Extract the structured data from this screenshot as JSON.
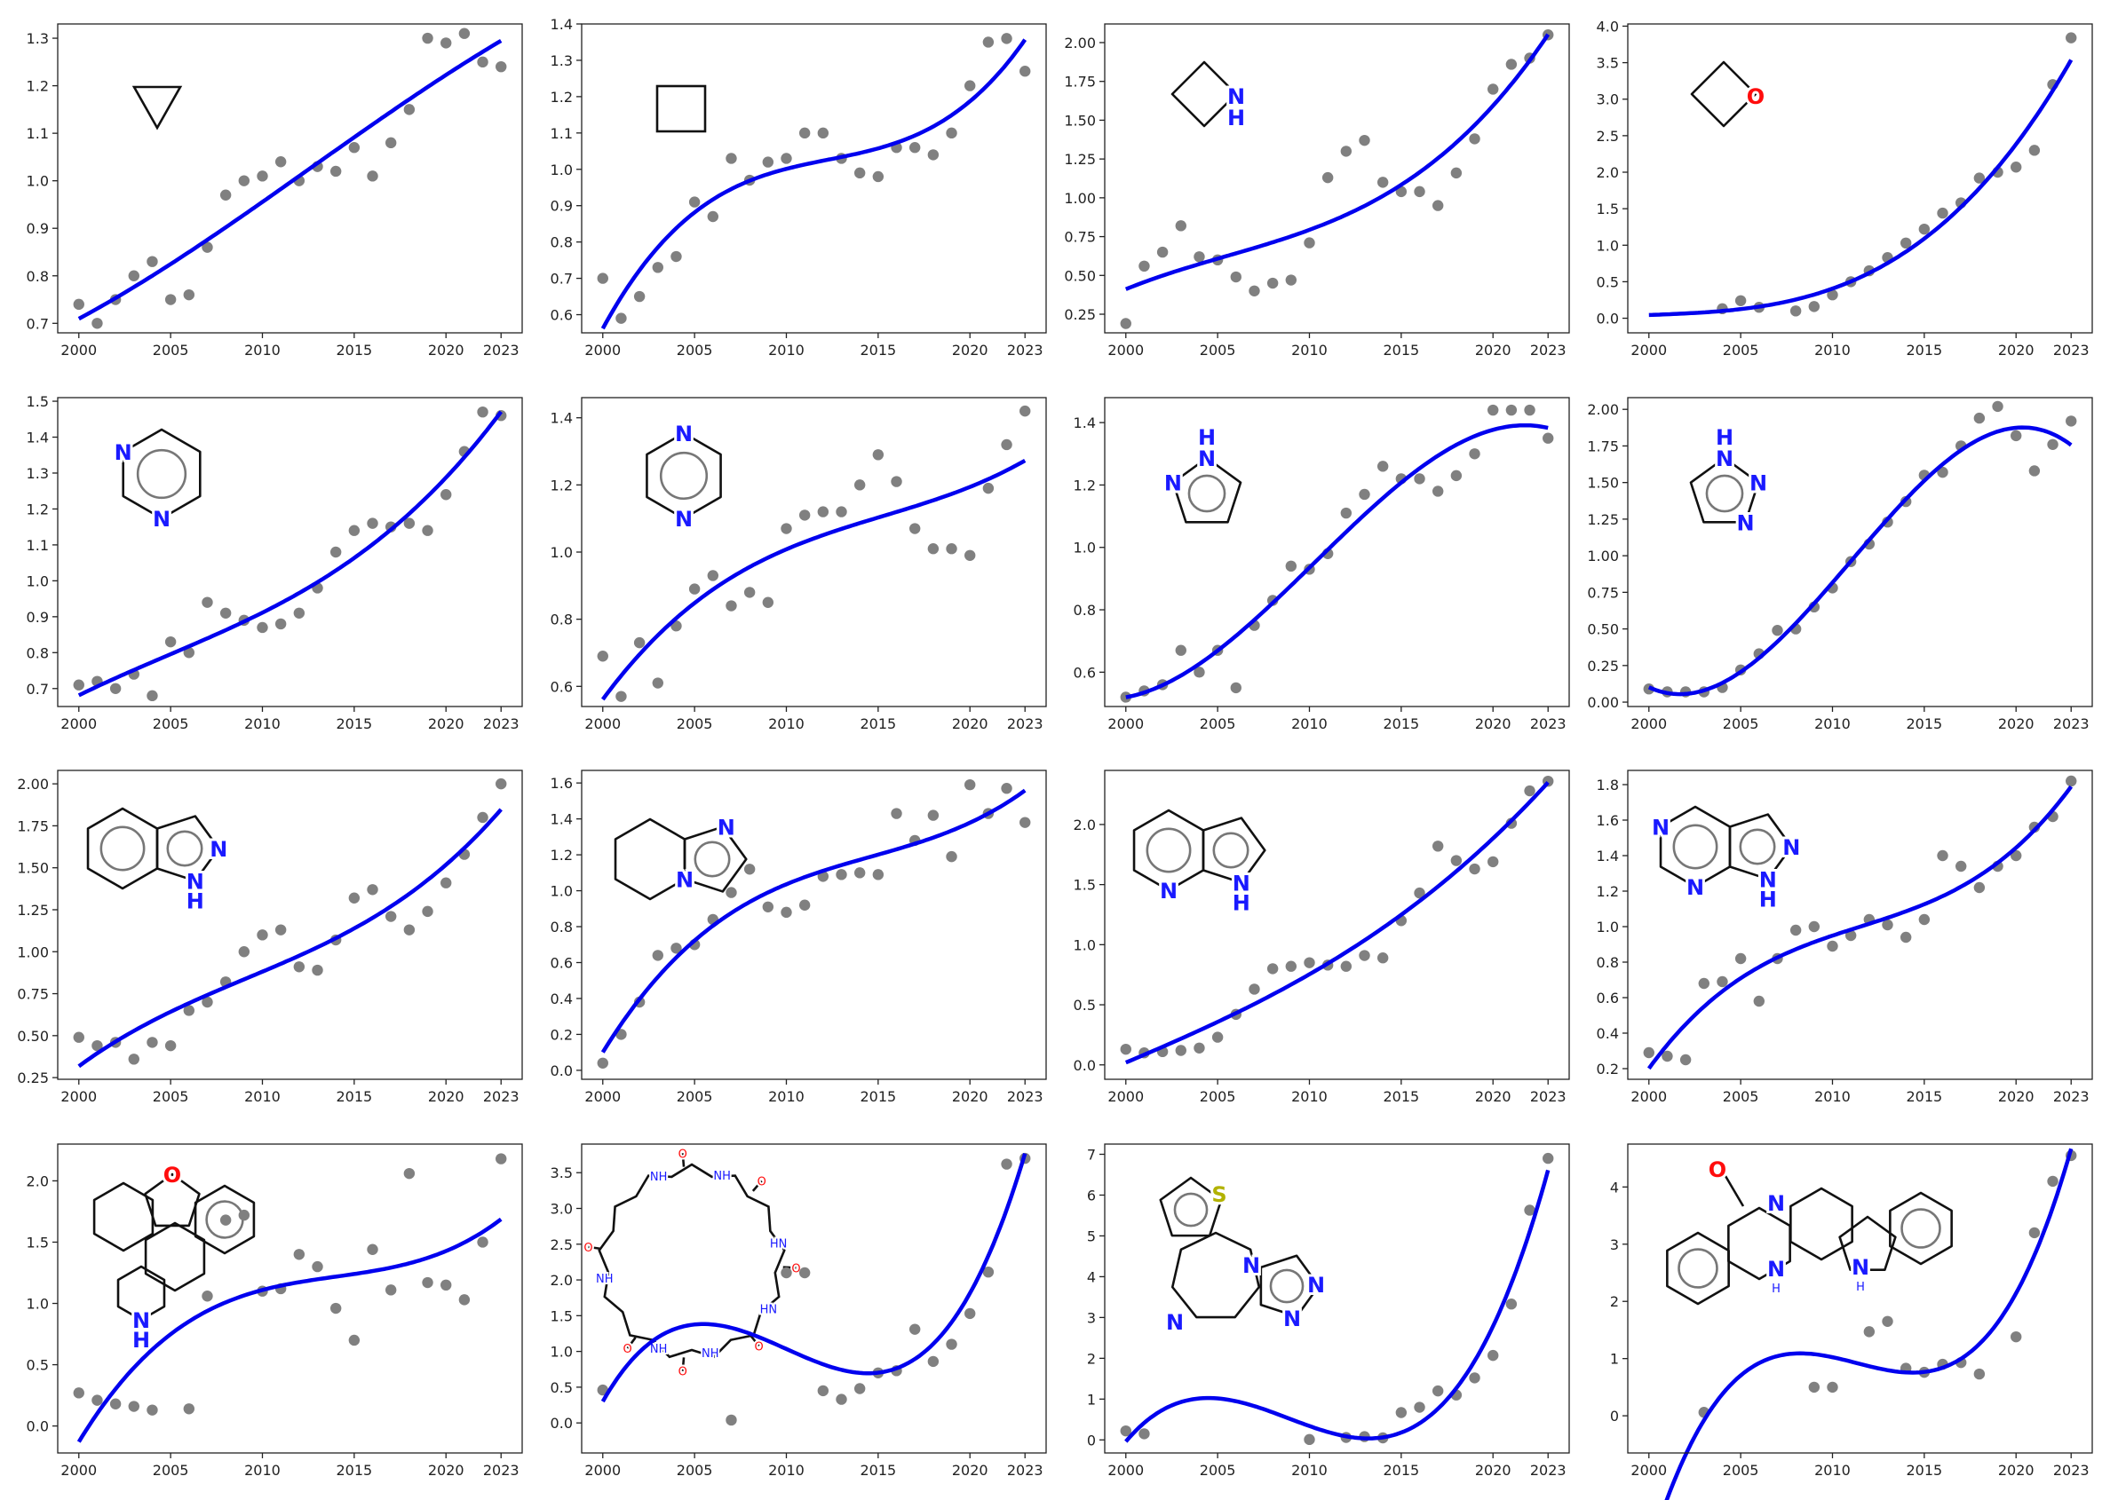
{
  "colors": {
    "points": "#808080",
    "fit": "#0000ee",
    "N": "#1a1aff",
    "O": "#ff0d0d",
    "S": "#b2b200",
    "H": "#1a1aff",
    "bond": "#111111"
  },
  "chart_data": [
    {
      "type": "scatter",
      "title": "",
      "xlabel": "",
      "ylabel": "",
      "ylim": [
        0.68,
        1.33
      ],
      "xlim": [
        1998.85,
        2024.15
      ],
      "xticks": [
        "2000",
        "2005",
        "2010",
        "2015",
        "2020",
        "2023"
      ],
      "yticks": [
        "0.7",
        "0.8",
        "0.9",
        "1.0",
        "1.1",
        "1.2",
        "1.3"
      ],
      "x": [
        2000,
        2001,
        2002,
        2003,
        2004,
        2005,
        2006,
        2007,
        2008,
        2009,
        2010,
        2011,
        2012,
        2013,
        2014,
        2015,
        2016,
        2017,
        2018,
        2019,
        2020,
        2021,
        2022,
        2023
      ],
      "y": [
        0.74,
        0.7,
        0.75,
        0.8,
        0.83,
        0.75,
        0.76,
        0.86,
        0.97,
        1.0,
        1.01,
        1.04,
        1.0,
        1.03,
        1.02,
        1.07,
        1.01,
        1.08,
        1.15,
        1.3,
        1.29,
        1.31,
        1.25,
        1.24
      ],
      "atom_labels": []
    },
    {
      "type": "scatter",
      "title": "",
      "xlabel": "",
      "ylabel": "",
      "ylim": [
        0.55,
        1.4
      ],
      "xlim": [
        1998.85,
        2024.15
      ],
      "xticks": [
        "2000",
        "2005",
        "2010",
        "2015",
        "2020",
        "2023"
      ],
      "yticks": [
        "0.6",
        "0.7",
        "0.8",
        "0.9",
        "1.0",
        "1.1",
        "1.2",
        "1.3",
        "1.4"
      ],
      "x": [
        2000,
        2001,
        2002,
        2003,
        2004,
        2005,
        2006,
        2007,
        2008,
        2009,
        2010,
        2011,
        2012,
        2013,
        2014,
        2015,
        2016,
        2017,
        2018,
        2019,
        2020,
        2021,
        2022,
        2023
      ],
      "y": [
        0.7,
        0.59,
        0.65,
        0.73,
        0.76,
        0.91,
        0.87,
        1.03,
        0.97,
        1.02,
        1.03,
        1.1,
        1.1,
        1.03,
        0.99,
        0.98,
        1.06,
        1.06,
        1.04,
        1.1,
        1.23,
        1.35,
        1.36,
        1.27
      ],
      "atom_labels": []
    },
    {
      "type": "scatter",
      "title": "",
      "xlabel": "",
      "ylabel": "",
      "ylim": [
        0.13,
        2.12
      ],
      "xlim": [
        1998.85,
        2024.15
      ],
      "xticks": [
        "2000",
        "2005",
        "2010",
        "2015",
        "2020",
        "2023"
      ],
      "yticks": [
        "0.25",
        "0.50",
        "0.75",
        "1.00",
        "1.25",
        "1.50",
        "1.75",
        "2.00"
      ],
      "x": [
        2000,
        2001,
        2002,
        2003,
        2004,
        2005,
        2006,
        2007,
        2008,
        2009,
        2010,
        2011,
        2012,
        2013,
        2014,
        2015,
        2016,
        2017,
        2018,
        2019,
        2020,
        2021,
        2022,
        2023
      ],
      "y": [
        0.19,
        0.56,
        0.65,
        0.82,
        0.62,
        0.6,
        0.49,
        0.4,
        0.45,
        0.47,
        0.71,
        1.13,
        1.3,
        1.37,
        1.1,
        1.04,
        1.04,
        0.95,
        1.16,
        1.38,
        1.7,
        1.86,
        1.9,
        2.05
      ],
      "atom_labels": [
        "N",
        "H"
      ]
    },
    {
      "type": "scatter",
      "title": "",
      "xlabel": "",
      "ylabel": "",
      "ylim": [
        -0.2,
        4.03
      ],
      "xlim": [
        1998.85,
        2024.15
      ],
      "xticks": [
        "2000",
        "2005",
        "2010",
        "2015",
        "2020",
        "2023"
      ],
      "yticks": [
        "0.0",
        "0.5",
        "1.0",
        "1.5",
        "2.0",
        "2.5",
        "3.0",
        "3.5",
        "4.0"
      ],
      "x": [
        2004,
        2005,
        2006,
        2008,
        2009,
        2010,
        2011,
        2012,
        2013,
        2014,
        2015,
        2016,
        2017,
        2018,
        2019,
        2020,
        2021,
        2022,
        2023
      ],
      "y": [
        0.13,
        0.24,
        0.15,
        0.1,
        0.16,
        0.32,
        0.5,
        0.65,
        0.83,
        1.03,
        1.22,
        1.44,
        1.58,
        1.92,
        2.0,
        2.07,
        2.3,
        3.2,
        3.84
      ],
      "atom_labels": [
        "O"
      ]
    },
    {
      "type": "scatter",
      "title": "",
      "xlabel": "",
      "ylabel": "",
      "ylim": [
        0.65,
        1.51
      ],
      "xlim": [
        1998.85,
        2024.15
      ],
      "xticks": [
        "2000",
        "2005",
        "2010",
        "2015",
        "2020",
        "2023"
      ],
      "yticks": [
        "0.7",
        "0.8",
        "0.9",
        "1.0",
        "1.1",
        "1.2",
        "1.3",
        "1.4",
        "1.5"
      ],
      "x": [
        2000,
        2001,
        2002,
        2003,
        2004,
        2005,
        2006,
        2007,
        2008,
        2009,
        2010,
        2011,
        2012,
        2013,
        2014,
        2015,
        2016,
        2017,
        2018,
        2019,
        2020,
        2021,
        2022,
        2023
      ],
      "y": [
        0.71,
        0.72,
        0.7,
        0.74,
        0.68,
        0.83,
        0.8,
        0.94,
        0.91,
        0.89,
        0.87,
        0.88,
        0.91,
        0.98,
        1.08,
        1.14,
        1.16,
        1.15,
        1.16,
        1.14,
        1.24,
        1.36,
        1.47,
        1.46
      ],
      "atom_labels": [
        "N",
        "N"
      ]
    },
    {
      "type": "scatter",
      "title": "",
      "xlabel": "",
      "ylabel": "",
      "ylim": [
        0.54,
        1.46
      ],
      "xlim": [
        1998.85,
        2024.15
      ],
      "xticks": [
        "2000",
        "2005",
        "2010",
        "2015",
        "2020",
        "2023"
      ],
      "yticks": [
        "0.6",
        "0.8",
        "1.0",
        "1.2",
        "1.4"
      ],
      "x": [
        2000,
        2001,
        2002,
        2003,
        2004,
        2005,
        2006,
        2007,
        2008,
        2009,
        2010,
        2011,
        2012,
        2013,
        2014,
        2015,
        2016,
        2017,
        2018,
        2019,
        2020,
        2021,
        2022,
        2023
      ],
      "y": [
        0.69,
        0.57,
        0.73,
        0.61,
        0.78,
        0.89,
        0.93,
        0.84,
        0.88,
        0.85,
        1.07,
        1.11,
        1.12,
        1.12,
        1.2,
        1.29,
        1.21,
        1.07,
        1.01,
        1.01,
        0.99,
        1.19,
        1.32,
        1.42
      ],
      "atom_labels": [
        "N",
        "N"
      ]
    },
    {
      "type": "scatter",
      "title": "",
      "xlabel": "",
      "ylabel": "",
      "ylim": [
        0.49,
        1.48
      ],
      "xlim": [
        1998.85,
        2024.15
      ],
      "xticks": [
        "2000",
        "2005",
        "2010",
        "2015",
        "2020",
        "2023"
      ],
      "yticks": [
        "0.6",
        "0.8",
        "1.0",
        "1.2",
        "1.4"
      ],
      "x": [
        2000,
        2001,
        2002,
        2003,
        2004,
        2005,
        2006,
        2007,
        2008,
        2009,
        2010,
        2011,
        2012,
        2013,
        2014,
        2015,
        2016,
        2017,
        2018,
        2019,
        2020,
        2021,
        2022,
        2023
      ],
      "y": [
        0.52,
        0.54,
        0.56,
        0.67,
        0.6,
        0.67,
        0.55,
        0.75,
        0.83,
        0.94,
        0.93,
        0.98,
        1.11,
        1.17,
        1.26,
        1.22,
        1.22,
        1.18,
        1.23,
        1.3,
        1.44,
        1.44,
        1.44,
        1.35
      ],
      "atom_labels": [
        "H",
        "N",
        "N"
      ]
    },
    {
      "type": "scatter",
      "title": "",
      "xlabel": "",
      "ylabel": "",
      "ylim": [
        -0.03,
        2.08
      ],
      "xlim": [
        1998.85,
        2024.15
      ],
      "xticks": [
        "2000",
        "2005",
        "2010",
        "2015",
        "2020",
        "2023"
      ],
      "yticks": [
        "0.00",
        "0.25",
        "0.50",
        "0.75",
        "1.00",
        "1.25",
        "1.50",
        "1.75",
        "2.00"
      ],
      "x": [
        2000,
        2001,
        2002,
        2003,
        2004,
        2005,
        2006,
        2007,
        2008,
        2009,
        2010,
        2011,
        2012,
        2013,
        2014,
        2015,
        2016,
        2017,
        2018,
        2019,
        2020,
        2021,
        2022,
        2023
      ],
      "y": [
        0.09,
        0.07,
        0.07,
        0.07,
        0.1,
        0.22,
        0.33,
        0.49,
        0.5,
        0.65,
        0.78,
        0.96,
        1.08,
        1.23,
        1.37,
        1.55,
        1.57,
        1.75,
        1.94,
        2.02,
        1.82,
        1.58,
        1.76,
        1.92
      ],
      "atom_labels": [
        "H",
        "N",
        "N",
        "N"
      ]
    },
    {
      "type": "scatter",
      "title": "",
      "xlabel": "",
      "ylabel": "",
      "ylim": [
        0.24,
        2.08
      ],
      "xlim": [
        1998.85,
        2024.15
      ],
      "xticks": [
        "2000",
        "2005",
        "2010",
        "2015",
        "2020",
        "2023"
      ],
      "yticks": [
        "0.25",
        "0.50",
        "0.75",
        "1.00",
        "1.25",
        "1.50",
        "1.75",
        "2.00"
      ],
      "x": [
        2000,
        2001,
        2002,
        2003,
        2004,
        2005,
        2006,
        2007,
        2008,
        2009,
        2010,
        2011,
        2012,
        2013,
        2014,
        2015,
        2016,
        2017,
        2018,
        2019,
        2020,
        2021,
        2022,
        2023
      ],
      "y": [
        0.49,
        0.44,
        0.46,
        0.36,
        0.46,
        0.44,
        0.65,
        0.7,
        0.82,
        1.0,
        1.1,
        1.13,
        0.91,
        0.89,
        1.07,
        1.32,
        1.37,
        1.21,
        1.13,
        1.24,
        1.41,
        1.58,
        1.8,
        2.0
      ],
      "atom_labels": [
        "N",
        "N",
        "H"
      ]
    },
    {
      "type": "scatter",
      "title": "",
      "xlabel": "",
      "ylabel": "",
      "ylim": [
        -0.05,
        1.67
      ],
      "xlim": [
        1998.85,
        2024.15
      ],
      "xticks": [
        "2000",
        "2005",
        "2010",
        "2015",
        "2020",
        "2023"
      ],
      "yticks": [
        "0.0",
        "0.2",
        "0.4",
        "0.6",
        "0.8",
        "1.0",
        "1.2",
        "1.4",
        "1.6"
      ],
      "x": [
        2000,
        2001,
        2002,
        2003,
        2004,
        2005,
        2006,
        2007,
        2008,
        2009,
        2010,
        2011,
        2012,
        2013,
        2014,
        2015,
        2016,
        2017,
        2018,
        2019,
        2020,
        2021,
        2022,
        2023
      ],
      "y": [
        0.04,
        0.2,
        0.38,
        0.64,
        0.68,
        0.7,
        0.84,
        0.99,
        1.12,
        0.91,
        0.88,
        0.92,
        1.08,
        1.09,
        1.1,
        1.09,
        1.43,
        1.28,
        1.42,
        1.19,
        1.59,
        1.43,
        1.57,
        1.38
      ],
      "atom_labels": [
        "N",
        "N"
      ]
    },
    {
      "type": "scatter",
      "title": "",
      "xlabel": "",
      "ylabel": "",
      "ylim": [
        -0.12,
        2.45
      ],
      "xlim": [
        1998.85,
        2024.15
      ],
      "xticks": [
        "2000",
        "2005",
        "2010",
        "2015",
        "2020",
        "2023"
      ],
      "yticks": [
        "0.0",
        "0.5",
        "1.0",
        "1.5",
        "2.0"
      ],
      "x": [
        2000,
        2001,
        2002,
        2003,
        2004,
        2005,
        2006,
        2007,
        2008,
        2009,
        2010,
        2011,
        2012,
        2013,
        2014,
        2015,
        2016,
        2017,
        2018,
        2019,
        2020,
        2021,
        2022,
        2023
      ],
      "y": [
        0.13,
        0.1,
        0.11,
        0.12,
        0.14,
        0.23,
        0.42,
        0.63,
        0.8,
        0.82,
        0.85,
        0.83,
        0.82,
        0.91,
        0.89,
        1.2,
        1.43,
        1.82,
        1.7,
        1.63,
        1.69,
        2.01,
        2.28,
        2.36
      ],
      "atom_labels": [
        "N",
        "N",
        "H"
      ]
    },
    {
      "type": "scatter",
      "title": "",
      "xlabel": "",
      "ylabel": "",
      "ylim": [
        0.14,
        1.88
      ],
      "xlim": [
        1998.85,
        2024.15
      ],
      "xticks": [
        "2000",
        "2005",
        "2010",
        "2015",
        "2020",
        "2023"
      ],
      "yticks": [
        "0.2",
        "0.4",
        "0.6",
        "0.8",
        "1.0",
        "1.2",
        "1.4",
        "1.6",
        "1.8"
      ],
      "x": [
        2000,
        2001,
        2002,
        2003,
        2004,
        2005,
        2006,
        2007,
        2008,
        2009,
        2010,
        2011,
        2012,
        2013,
        2014,
        2015,
        2016,
        2017,
        2018,
        2019,
        2020,
        2021,
        2022,
        2023
      ],
      "y": [
        0.29,
        0.27,
        0.25,
        0.68,
        0.69,
        0.82,
        0.58,
        0.82,
        0.98,
        1.0,
        0.89,
        0.95,
        1.04,
        1.01,
        0.94,
        1.04,
        1.4,
        1.34,
        1.22,
        1.34,
        1.4,
        1.56,
        1.62,
        1.82
      ],
      "atom_labels": [
        "N",
        "N",
        "N",
        "N",
        "H"
      ]
    },
    {
      "type": "scatter",
      "title": "",
      "xlabel": "",
      "ylabel": "",
      "ylim": [
        -0.22,
        2.3
      ],
      "xlim": [
        1998.85,
        2024.15
      ],
      "xticks": [
        "2000",
        "2005",
        "2010",
        "2015",
        "2020",
        "2023"
      ],
      "yticks": [
        "0.0",
        "0.5",
        "1.0",
        "1.5",
        "2.0"
      ],
      "x": [
        2000,
        2001,
        2002,
        2003,
        2004,
        2006,
        2007,
        2008,
        2009,
        2010,
        2011,
        2012,
        2013,
        2014,
        2015,
        2016,
        2017,
        2018,
        2019,
        2020,
        2021,
        2022,
        2023
      ],
      "y": [
        0.27,
        0.21,
        0.18,
        0.16,
        0.13,
        0.14,
        1.06,
        1.68,
        1.72,
        1.1,
        1.12,
        1.4,
        1.3,
        0.96,
        0.7,
        1.44,
        1.11,
        2.06,
        1.17,
        1.15,
        1.03,
        1.5,
        2.18
      ],
      "atom_labels": [
        "O",
        "N",
        "H"
      ]
    },
    {
      "type": "scatter",
      "title": "",
      "xlabel": "",
      "ylabel": "",
      "ylim": [
        -0.42,
        3.9
      ],
      "xlim": [
        1998.85,
        2024.15
      ],
      "xticks": [
        "2000",
        "2005",
        "2010",
        "2015",
        "2020",
        "2023"
      ],
      "yticks": [
        "0.0",
        "0.5",
        "1.0",
        "1.5",
        "2.0",
        "2.5",
        "3.0",
        "3.5"
      ],
      "x": [
        2000,
        2007,
        2010,
        2011,
        2012,
        2013,
        2014,
        2015,
        2016,
        2017,
        2018,
        2019,
        2020,
        2021,
        2022,
        2023
      ],
      "y": [
        0.46,
        0.04,
        2.1,
        2.1,
        0.45,
        0.33,
        0.48,
        0.7,
        0.73,
        1.31,
        0.86,
        1.1,
        1.53,
        2.11,
        3.62,
        3.7
      ],
      "atom_labels": [
        "O",
        "NH",
        "NH",
        "O",
        "HN",
        "O",
        "HN",
        "O",
        "NH",
        "O",
        "NH",
        "O",
        "NH",
        "O"
      ]
    },
    {
      "type": "scatter",
      "title": "",
      "xlabel": "",
      "ylabel": "",
      "ylim": [
        -0.32,
        7.25
      ],
      "xlim": [
        1998.85,
        2024.15
      ],
      "xticks": [
        "2000",
        "2005",
        "2010",
        "2015",
        "2020",
        "2023"
      ],
      "yticks": [
        "0",
        "1",
        "2",
        "3",
        "4",
        "5",
        "6",
        "7"
      ],
      "x": [
        2000,
        2001,
        2010,
        2012,
        2013,
        2014,
        2015,
        2016,
        2017,
        2018,
        2019,
        2020,
        2021,
        2022,
        2023
      ],
      "y": [
        0.22,
        0.15,
        0.01,
        0.06,
        0.08,
        0.05,
        0.67,
        0.8,
        1.2,
        1.1,
        1.52,
        2.07,
        3.33,
        5.63,
        6.9
      ],
      "atom_labels": [
        "S",
        "N",
        "N",
        "N",
        "N"
      ]
    },
    {
      "type": "scatter",
      "title": "",
      "xlabel": "",
      "ylabel": "",
      "ylim": [
        -0.65,
        4.75
      ],
      "xlim": [
        1998.85,
        2024.15
      ],
      "xticks": [
        "2000",
        "2005",
        "2010",
        "2015",
        "2020",
        "2023"
      ],
      "yticks": [
        "0",
        "1",
        "2",
        "3",
        "4"
      ],
      "x": [
        2003,
        2009,
        2010,
        2012,
        2013,
        2014,
        2015,
        2016,
        2017,
        2018,
        2020,
        2021,
        2022,
        2023
      ],
      "y": [
        0.06,
        0.5,
        0.5,
        1.47,
        1.65,
        0.83,
        0.76,
        0.9,
        0.93,
        0.73,
        1.38,
        3.2,
        4.1,
        4.55
      ],
      "atom_labels": [
        "O",
        "N",
        "N",
        "H",
        "N",
        "H"
      ]
    }
  ]
}
